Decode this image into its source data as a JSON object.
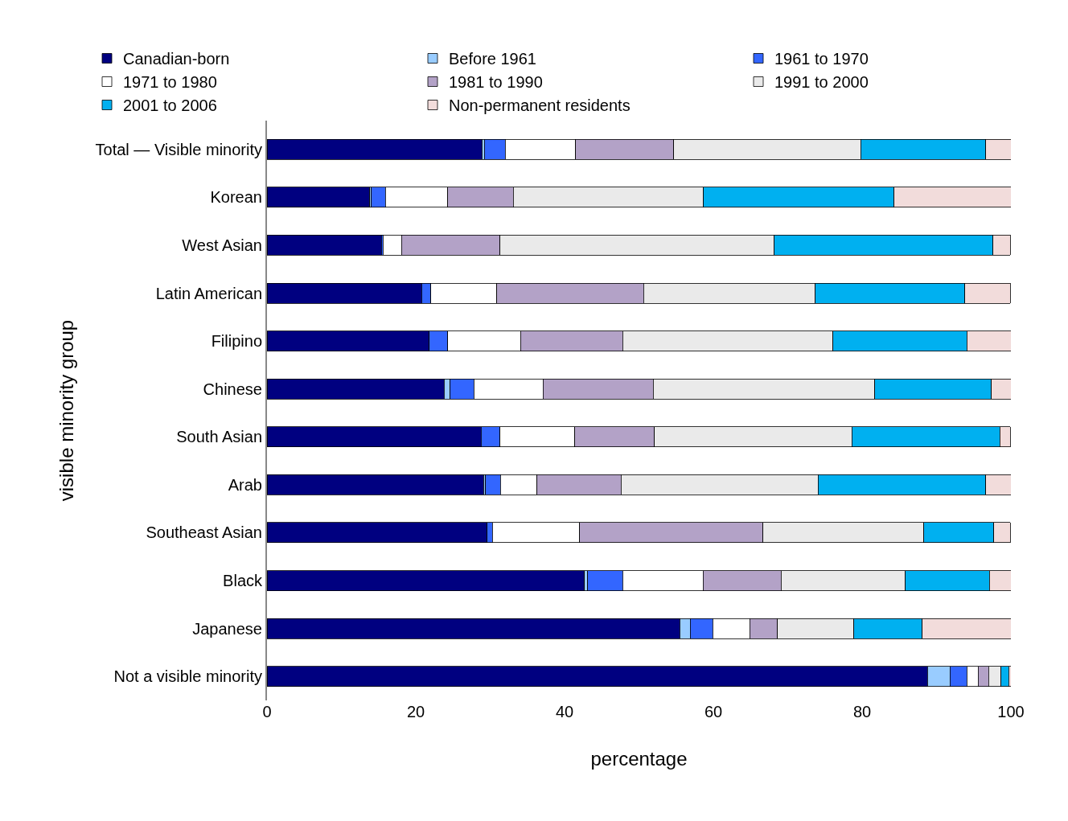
{
  "chart_data": {
    "type": "bar",
    "orientation": "horizontal",
    "stacked": true,
    "xlabel": "percentage",
    "ylabel": "visible minority group",
    "categories": [
      "Total — Visible minority",
      "Korean",
      "West Asian",
      "Latin American",
      "Filipino",
      "Chinese",
      "South Asian",
      "Arab",
      "Southeast Asian",
      "Black",
      "Japanese",
      "Not a visible minority"
    ],
    "xlim": [
      0,
      100
    ],
    "xticks": [
      0,
      20,
      40,
      60,
      80,
      100
    ],
    "legend": "top",
    "series": [
      {
        "name": "Canadian-born",
        "color": "#000080",
        "values": [
          28.9,
          13.8,
          15.4,
          20.8,
          21.8,
          23.8,
          28.8,
          29.1,
          29.6,
          42.7,
          55.5,
          88.8
        ]
      },
      {
        "name": "Before 1961",
        "color": "#99ccff",
        "values": [
          0.3,
          0.2,
          null,
          null,
          0,
          0.8,
          null,
          0.3,
          null,
          0.4,
          1.4,
          3.0
        ]
      },
      {
        "name": "1961 to 1970",
        "color": "#3366ff",
        "values": [
          2.8,
          1.9,
          0.2,
          1.2,
          2.5,
          3.2,
          2.5,
          2.0,
          0.7,
          4.7,
          3.0,
          2.3
        ]
      },
      {
        "name": "1971 to 1980",
        "color": "#ffffff",
        "values": [
          9.5,
          8.4,
          2.5,
          8.9,
          9.8,
          9.3,
          10.1,
          4.9,
          11.7,
          10.8,
          5.0,
          1.5
        ]
      },
      {
        "name": "1981 to 1990",
        "color": "#b3a2c7",
        "values": [
          13.2,
          8.8,
          13.2,
          19.7,
          13.7,
          14.8,
          10.7,
          11.3,
          24.7,
          10.5,
          3.7,
          1.4
        ]
      },
      {
        "name": "1991 to 2000",
        "color": "#eaeaea",
        "values": [
          25.1,
          25.6,
          36.9,
          23.1,
          28.3,
          29.8,
          26.5,
          26.5,
          21.6,
          16.7,
          10.3,
          1.7
        ]
      },
      {
        "name": "2001 to 2006",
        "color": "#00b0f0",
        "values": [
          16.8,
          25.6,
          29.4,
          20.1,
          18.0,
          15.7,
          19.9,
          22.5,
          9.4,
          11.3,
          9.2,
          1.0
        ]
      },
      {
        "name": "Non-permanent residents",
        "color": "#f2dcdb",
        "values": [
          3.4,
          15.7,
          2.3,
          6.1,
          5.9,
          2.6,
          1.4,
          3.4,
          2.2,
          2.9,
          11.9,
          0.3
        ]
      }
    ]
  }
}
